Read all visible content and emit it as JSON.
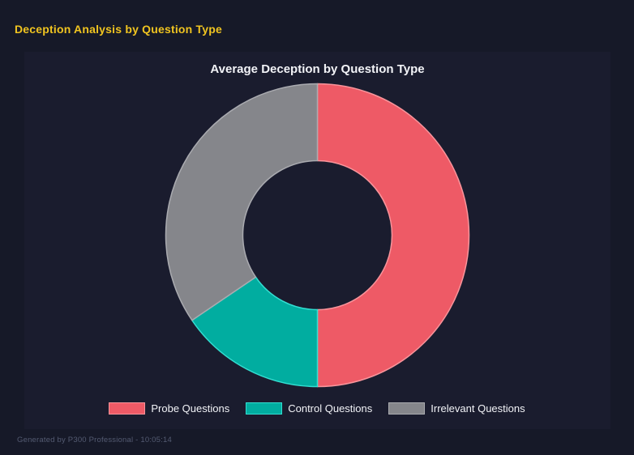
{
  "page": {
    "title": "Deception Analysis by Question Type",
    "footer": "Generated by P300 Professional - 10:05:14"
  },
  "colors": {
    "background": "#161928",
    "panel": "#1a1c2e",
    "header_text": "#f0c420",
    "title_text": "#f2f3f7",
    "footer_text": "#545b72"
  },
  "chart_data": {
    "type": "pie",
    "variant": "doughnut",
    "title": "Average Deception by Question Type",
    "categories": [
      "Probe Questions",
      "Control Questions",
      "Irrelevant Questions"
    ],
    "values": [
      50,
      15.5,
      34.5
    ],
    "unit": "percent of total (estimated from arc angles; no numeric labels shown)",
    "colors": [
      "#ee5a66",
      "#01ada0",
      "#85868b"
    ],
    "border_colors": [
      "#f9949b",
      "#33ded1",
      "#aaabb0"
    ],
    "start_angle_deg": 0,
    "direction": "clockwise",
    "cutout_ratio": 0.49,
    "grid": false,
    "legend_position": "bottom"
  },
  "legend": {
    "items": [
      {
        "label": "Probe Questions",
        "color": "#ee5a66",
        "border": "#f9949b"
      },
      {
        "label": "Control Questions",
        "color": "#01ada0",
        "border": "#33ded1"
      },
      {
        "label": "Irrelevant Questions",
        "color": "#85868b",
        "border": "#aaabb0"
      }
    ]
  }
}
